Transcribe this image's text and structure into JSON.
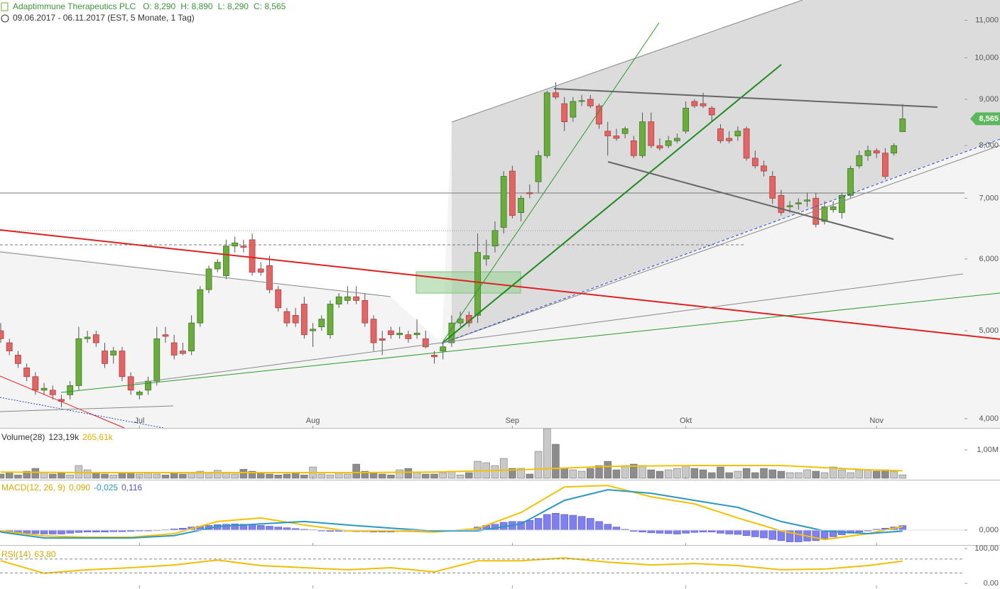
{
  "chart_data": [
    {
      "type": "candlestick",
      "title": "Adaptimmune Therapeutics PLC",
      "readout": [
        "O: 8,290",
        "H: 8,890",
        "L: 8,290",
        "C: 8,565"
      ],
      "subtitle": "09.06.2017 - 06.11.2017  (EST, 5 Monate, 1 Tag)",
      "log_scale": true,
      "ylim": [
        3.907,
        11.58
      ],
      "yticks": [
        {
          "value": 4,
          "label": "4,000"
        },
        {
          "value": 5,
          "label": "5,000"
        },
        {
          "value": 6,
          "label": "6,000"
        },
        {
          "value": 7,
          "label": "7,000"
        },
        {
          "value": 8,
          "label": "8,000"
        },
        {
          "value": 9,
          "label": "9,000"
        },
        {
          "value": 10,
          "label": "10,000"
        },
        {
          "value": 11,
          "label": "11,000"
        }
      ],
      "up_color": "#6aad3d",
      "down_color": "#e26565",
      "last_label": {
        "value": 8.565,
        "label": "8,565"
      },
      "categories": [
        null,
        null,
        null,
        null,
        null,
        null,
        null,
        null,
        null,
        null,
        null,
        null,
        null,
        null,
        null,
        null,
        "Jul",
        null,
        null,
        null,
        null,
        null,
        null,
        null,
        null,
        null,
        null,
        null,
        null,
        null,
        null,
        null,
        null,
        null,
        null,
        null,
        "Aug",
        null,
        null,
        null,
        null,
        null,
        null,
        null,
        null,
        null,
        null,
        null,
        null,
        null,
        null,
        null,
        null,
        null,
        null,
        null,
        null,
        null,
        null,
        "Sep",
        null,
        null,
        null,
        null,
        null,
        null,
        null,
        null,
        null,
        null,
        null,
        null,
        null,
        null,
        null,
        null,
        null,
        null,
        null,
        "Okt",
        null,
        null,
        null,
        null,
        null,
        null,
        null,
        null,
        null,
        null,
        null,
        null,
        null,
        null,
        null,
        null,
        null,
        null,
        null,
        null,
        null,
        "Nov",
        null,
        null,
        null
      ],
      "ohlc": [
        [
          5.0,
          5.1,
          4.85,
          4.9
        ],
        [
          4.85,
          4.9,
          4.7,
          4.75
        ],
        [
          4.7,
          4.75,
          4.55,
          4.6
        ],
        [
          4.55,
          4.6,
          4.4,
          4.45
        ],
        [
          4.45,
          4.5,
          4.25,
          4.3
        ],
        [
          4.3,
          4.38,
          4.25,
          4.32
        ],
        [
          4.3,
          4.35,
          4.2,
          4.25
        ],
        [
          4.2,
          4.25,
          4.12,
          4.18
        ],
        [
          4.25,
          4.4,
          4.2,
          4.35
        ],
        [
          4.35,
          5.05,
          4.3,
          4.9
        ],
        [
          4.9,
          5.0,
          4.85,
          4.92
        ],
        [
          4.95,
          5.0,
          4.8,
          4.85
        ],
        [
          4.75,
          4.85,
          4.55,
          4.6
        ],
        [
          4.7,
          4.8,
          4.6,
          4.75
        ],
        [
          4.75,
          4.8,
          4.4,
          4.45
        ],
        [
          4.45,
          4.5,
          4.25,
          4.3
        ],
        [
          4.25,
          4.3,
          4.2,
          4.28
        ],
        [
          4.3,
          4.45,
          4.25,
          4.4
        ],
        [
          4.4,
          5.05,
          4.35,
          4.9
        ],
        [
          4.95,
          5.05,
          4.85,
          4.93
        ],
        [
          4.85,
          4.95,
          4.65,
          4.7
        ],
        [
          4.75,
          4.85,
          4.7,
          4.72
        ],
        [
          4.75,
          5.2,
          4.7,
          5.1
        ],
        [
          5.1,
          5.6,
          5.05,
          5.55
        ],
        [
          5.55,
          5.9,
          5.5,
          5.85
        ],
        [
          5.85,
          6.0,
          5.8,
          5.95
        ],
        [
          5.75,
          6.3,
          5.7,
          6.2
        ],
        [
          6.2,
          6.35,
          6.1,
          6.25
        ],
        [
          6.2,
          6.3,
          6.1,
          6.18
        ],
        [
          6.3,
          6.4,
          5.75,
          5.8
        ],
        [
          5.85,
          5.95,
          5.75,
          5.8
        ],
        [
          5.9,
          6.05,
          5.5,
          5.55
        ],
        [
          5.55,
          5.6,
          5.25,
          5.3
        ],
        [
          5.25,
          5.3,
          5.05,
          5.1
        ],
        [
          5.2,
          5.3,
          5.05,
          5.1
        ],
        [
          5.35,
          5.45,
          4.9,
          4.95
        ],
        [
          5.0,
          5.1,
          4.8,
          5.02
        ],
        [
          5.05,
          5.2,
          5.0,
          5.15
        ],
        [
          4.95,
          5.4,
          4.9,
          5.35
        ],
        [
          5.35,
          5.5,
          5.3,
          5.45
        ],
        [
          5.4,
          5.6,
          5.35,
          5.45
        ],
        [
          5.45,
          5.6,
          5.35,
          5.4
        ],
        [
          5.4,
          5.5,
          5.05,
          5.1
        ],
        [
          5.15,
          5.2,
          4.75,
          4.85
        ],
        [
          4.9,
          5.0,
          4.7,
          4.88
        ],
        [
          5.0,
          5.05,
          4.9,
          4.95
        ],
        [
          4.95,
          5.05,
          4.9,
          4.97
        ],
        [
          4.95,
          5.0,
          4.85,
          4.9
        ],
        [
          4.95,
          5.15,
          4.9,
          4.97
        ],
        [
          4.9,
          5.0,
          4.78,
          4.8
        ],
        [
          4.7,
          4.75,
          4.6,
          4.68
        ],
        [
          4.75,
          4.85,
          4.65,
          4.8
        ],
        [
          4.85,
          5.2,
          4.8,
          5.1
        ],
        [
          5.1,
          5.25,
          5.05,
          5.15
        ],
        [
          5.2,
          5.25,
          5.05,
          5.1
        ],
        [
          5.2,
          6.4,
          5.1,
          6.1
        ],
        [
          6.0,
          6.3,
          5.9,
          6.05
        ],
        [
          6.2,
          6.6,
          6.1,
          6.45
        ],
        [
          6.5,
          7.5,
          6.4,
          7.4
        ],
        [
          7.5,
          7.6,
          6.65,
          6.7
        ],
        [
          6.75,
          7.05,
          6.6,
          7.0
        ],
        [
          7.1,
          7.25,
          7.0,
          7.08
        ],
        [
          7.3,
          7.9,
          7.1,
          7.8
        ],
        [
          7.8,
          9.2,
          7.75,
          9.15
        ],
        [
          9.15,
          9.4,
          9.0,
          9.05
        ],
        [
          8.9,
          9.05,
          8.3,
          8.5
        ],
        [
          8.6,
          9.05,
          8.5,
          8.95
        ],
        [
          8.95,
          9.1,
          8.85,
          8.97
        ],
        [
          9.0,
          9.1,
          8.8,
          8.85
        ],
        [
          8.85,
          8.9,
          8.35,
          8.45
        ],
        [
          8.3,
          8.5,
          7.8,
          8.2
        ],
        [
          8.2,
          8.35,
          8.1,
          8.15
        ],
        [
          8.25,
          8.4,
          8.15,
          8.35
        ],
        [
          8.1,
          8.2,
          7.75,
          7.8
        ],
        [
          7.8,
          8.7,
          7.75,
          8.5
        ],
        [
          8.5,
          8.7,
          7.95,
          8.0
        ],
        [
          8.0,
          8.15,
          7.9,
          7.95
        ],
        [
          8.0,
          8.2,
          7.95,
          8.1
        ],
        [
          8.1,
          8.25,
          8.05,
          8.15
        ],
        [
          8.3,
          8.95,
          8.25,
          8.8
        ],
        [
          8.95,
          9.0,
          8.8,
          8.85
        ],
        [
          8.9,
          9.15,
          8.8,
          8.85
        ],
        [
          8.8,
          8.85,
          8.5,
          8.65
        ],
        [
          8.35,
          8.45,
          8.05,
          8.1
        ],
        [
          8.15,
          8.3,
          8.05,
          8.1
        ],
        [
          8.2,
          8.4,
          8.1,
          8.3
        ],
        [
          8.35,
          8.4,
          7.7,
          7.75
        ],
        [
          7.75,
          7.9,
          7.55,
          7.6
        ],
        [
          7.6,
          7.7,
          7.4,
          7.5
        ],
        [
          7.4,
          7.5,
          6.9,
          7.0
        ],
        [
          7.05,
          7.15,
          6.7,
          6.75
        ],
        [
          6.85,
          6.95,
          6.75,
          6.87
        ],
        [
          6.9,
          7.0,
          6.8,
          6.92
        ],
        [
          6.95,
          7.1,
          6.85,
          6.97
        ],
        [
          7.0,
          7.1,
          6.5,
          6.55
        ],
        [
          6.6,
          6.95,
          6.55,
          6.85
        ],
        [
          6.8,
          6.95,
          6.75,
          6.85
        ],
        [
          6.75,
          7.1,
          6.65,
          7.05
        ],
        [
          7.05,
          7.6,
          7.0,
          7.55
        ],
        [
          7.6,
          7.9,
          7.55,
          7.8
        ],
        [
          7.8,
          8.0,
          7.7,
          7.9
        ],
        [
          7.9,
          7.95,
          7.75,
          7.85
        ],
        [
          7.85,
          7.95,
          7.35,
          7.4
        ],
        [
          7.85,
          8.05,
          7.8,
          8.0
        ],
        [
          8.29,
          8.89,
          8.29,
          8.565
        ]
      ]
    },
    {
      "type": "bar",
      "legend": [
        "Volume(28)",
        "123,19k",
        "265,61k"
      ],
      "ylim": [
        0,
        1.75
      ],
      "yticks": [
        {
          "value": 1,
          "label": "1,00M"
        }
      ],
      "up_color": "#c9c9c9",
      "down_color": "#8c8c8c",
      "values": [
        0.15,
        0.2,
        0.12,
        0.25,
        0.35,
        0.2,
        0.15,
        0.18,
        0.12,
        0.45,
        0.3,
        0.2,
        0.15,
        0.12,
        0.2,
        0.18,
        0.15,
        0.2,
        0.15,
        0.12,
        0.2,
        0.15,
        0.22,
        0.25,
        0.22,
        0.28,
        0.22,
        0.15,
        0.32,
        0.25,
        0.2,
        0.15,
        0.12,
        0.15,
        0.18,
        0.12,
        0.4,
        0.15,
        0.12,
        0.2,
        0.15,
        0.5,
        0.25,
        0.2,
        0.15,
        0.12,
        0.3,
        0.35,
        0.2,
        0.15,
        0.15,
        0.2,
        0.25,
        0.12,
        0.2,
        0.6,
        0.55,
        0.45,
        0.7,
        0.35,
        0.35,
        0.15,
        0.95,
        1.75,
        1.2,
        0.35,
        0.3,
        0.25,
        0.35,
        0.45,
        0.6,
        0.3,
        0.45,
        0.5,
        0.45,
        0.3,
        0.25,
        0.3,
        0.35,
        0.45,
        0.35,
        0.3,
        0.2,
        0.4,
        0.2,
        0.25,
        0.35,
        0.2,
        0.35,
        0.3,
        0.25,
        0.2,
        0.2,
        0.3,
        0.25,
        0.2,
        0.4,
        0.3,
        0.2,
        0.3,
        0.3,
        0.25,
        0.3,
        0.25,
        0.12319
      ],
      "ma": {
        "color": "#f2c200",
        "x": [
          0,
          10,
          20,
          30,
          40,
          50,
          60,
          70,
          80,
          90,
          100,
          104
        ],
        "values": [
          0.22,
          0.2,
          0.2,
          0.2,
          0.2,
          0.22,
          0.3,
          0.42,
          0.45,
          0.45,
          0.3,
          0.26561
        ]
      }
    },
    {
      "type": "macd",
      "legend": [
        "MACD(12, 26, 9)",
        "0,090",
        "-0,025",
        "0,116"
      ],
      "ylim": [
        -0.38,
        1.25
      ],
      "yticks": [
        {
          "value": 0,
          "label": "0,000"
        }
      ],
      "histogram_color": "#7f7ff0",
      "histogram": [
        -0.05,
        -0.06,
        -0.07,
        -0.08,
        -0.09,
        -0.1,
        -0.1,
        -0.1,
        -0.08,
        -0.06,
        -0.05,
        -0.05,
        -0.05,
        -0.04,
        -0.04,
        -0.03,
        -0.02,
        -0.02,
        -0.01,
        0.01,
        0.03,
        0.05,
        0.08,
        0.1,
        0.12,
        0.14,
        0.15,
        0.16,
        0.15,
        0.14,
        0.12,
        0.1,
        0.08,
        0.06,
        0.04,
        0.02,
        0.01,
        -0.02,
        -0.03,
        -0.03,
        -0.03,
        -0.04,
        -0.04,
        -0.05,
        -0.05,
        -0.05,
        -0.04,
        -0.04,
        -0.03,
        -0.03,
        -0.03,
        -0.02,
        -0.01,
        0.01,
        0.03,
        0.08,
        0.12,
        0.15,
        0.2,
        0.22,
        0.22,
        0.25,
        0.3,
        0.4,
        0.43,
        0.4,
        0.38,
        0.35,
        0.3,
        0.22,
        0.15,
        0.08,
        0.02,
        -0.03,
        -0.05,
        -0.07,
        -0.08,
        -0.09,
        -0.1,
        -0.08,
        -0.06,
        -0.05,
        -0.05,
        -0.08,
        -0.1,
        -0.11,
        -0.14,
        -0.17,
        -0.2,
        -0.24,
        -0.27,
        -0.3,
        -0.3,
        -0.28,
        -0.27,
        -0.22,
        -0.17,
        -0.12,
        -0.08,
        -0.05,
        -0.02,
        0.02,
        0.05,
        0.08,
        0.116
      ],
      "series": [
        {
          "color": "#f2c200",
          "x": [
            0,
            5,
            10,
            15,
            20,
            25,
            30,
            35,
            40,
            45,
            50,
            55,
            60,
            65,
            70,
            75,
            80,
            85,
            90,
            95,
            100,
            104
          ],
          "values": [
            -0.02,
            -0.15,
            -0.18,
            -0.18,
            -0.09,
            0.22,
            0.31,
            0.13,
            -0.02,
            -0.02,
            -0.05,
            0.04,
            0.45,
            1.1,
            1.14,
            0.85,
            0.67,
            0.31,
            -0.02,
            -0.24,
            -0.09,
            0.09
          ]
        },
        {
          "color": "#2a98c2",
          "x": [
            0,
            5,
            10,
            15,
            20,
            25,
            30,
            35,
            40,
            45,
            50,
            55,
            60,
            65,
            70,
            75,
            80,
            85,
            90,
            95,
            100,
            104
          ],
          "values": [
            -0.05,
            -0.2,
            -0.2,
            -0.2,
            -0.14,
            0.09,
            0.16,
            0.22,
            0.13,
            0.05,
            -0.02,
            -0.02,
            0.16,
            0.76,
            1.03,
            0.94,
            0.76,
            0.58,
            0.22,
            -0.02,
            -0.09,
            -0.025
          ]
        }
      ]
    },
    {
      "type": "line",
      "legend": [
        "RSI(14)",
        "63,80"
      ],
      "ylim": [
        -12,
        106
      ],
      "yticks": [
        {
          "value": 0,
          "label": "0,00"
        },
        {
          "value": 100,
          "label": "100,00"
        }
      ],
      "levels": [
        30,
        70
      ],
      "color": "#f0c000",
      "x": [
        0,
        5,
        10,
        15,
        20,
        25,
        30,
        35,
        40,
        45,
        50,
        55,
        60,
        65,
        70,
        75,
        80,
        85,
        90,
        95,
        100,
        104
      ],
      "values": [
        65,
        29,
        39,
        45,
        53,
        67,
        51,
        45,
        39,
        45,
        33,
        65,
        65,
        73,
        61,
        53,
        57,
        51,
        39,
        41,
        51,
        63.8
      ]
    }
  ]
}
